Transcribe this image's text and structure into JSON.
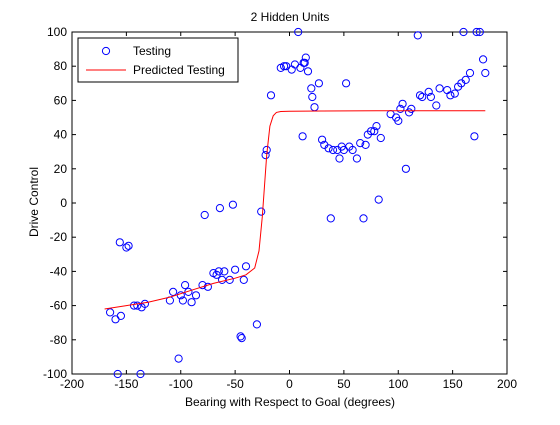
{
  "chart_data": {
    "type": "scatter",
    "title": "2 Hidden Units",
    "xlabel": "Bearing with Respect to Goal (degrees)",
    "ylabel": "Drive Control",
    "xlim": [
      -200,
      200
    ],
    "ylim": [
      -100,
      100
    ],
    "xticks": [
      -200,
      -150,
      -100,
      -50,
      0,
      50,
      100,
      150,
      200
    ],
    "yticks": [
      -100,
      -80,
      -60,
      -40,
      -20,
      0,
      20,
      40,
      60,
      80,
      100
    ],
    "grid": false,
    "legend_position": "top-left",
    "series": [
      {
        "name": "Testing",
        "type": "scatter",
        "marker": "open-circle",
        "color": "#0000ff",
        "points": [
          [
            -165,
            -64
          ],
          [
            -160,
            -68
          ],
          [
            -158,
            -100
          ],
          [
            -156,
            -23
          ],
          [
            -155,
            -66
          ],
          [
            -150,
            -26
          ],
          [
            -148,
            -25
          ],
          [
            -143,
            -60
          ],
          [
            -140,
            -60
          ],
          [
            -137,
            -100
          ],
          [
            -136,
            -61
          ],
          [
            -133,
            -59
          ],
          [
            -110,
            -57
          ],
          [
            -107,
            -52
          ],
          [
            -102,
            -91
          ],
          [
            -100,
            -54
          ],
          [
            -98,
            -57
          ],
          [
            -96,
            -48
          ],
          [
            -93,
            -52
          ],
          [
            -90,
            -58
          ],
          [
            -86,
            -54
          ],
          [
            -80,
            -48
          ],
          [
            -78,
            -7
          ],
          [
            -75,
            -49
          ],
          [
            -70,
            -41
          ],
          [
            -67,
            -42
          ],
          [
            -65,
            -40
          ],
          [
            -64,
            -3
          ],
          [
            -62,
            -45
          ],
          [
            -60,
            -40
          ],
          [
            -55,
            -45
          ],
          [
            -52,
            -1
          ],
          [
            -50,
            -39
          ],
          [
            -45,
            -78
          ],
          [
            -44,
            -79
          ],
          [
            -42,
            -45
          ],
          [
            -40,
            -37
          ],
          [
            -30,
            -71
          ],
          [
            -26,
            -5
          ],
          [
            -22,
            28
          ],
          [
            -21,
            31
          ],
          [
            -17,
            63
          ],
          [
            -8,
            79
          ],
          [
            -5,
            80
          ],
          [
            -3,
            80
          ],
          [
            2,
            78
          ],
          [
            5,
            81
          ],
          [
            8,
            100
          ],
          [
            10,
            79
          ],
          [
            12,
            39
          ],
          [
            13,
            82
          ],
          [
            14,
            82
          ],
          [
            15,
            85
          ],
          [
            17,
            77
          ],
          [
            20,
            67
          ],
          [
            21,
            62
          ],
          [
            23,
            56
          ],
          [
            27,
            70
          ],
          [
            30,
            37
          ],
          [
            32,
            34
          ],
          [
            36,
            32
          ],
          [
            38,
            -9
          ],
          [
            40,
            31
          ],
          [
            44,
            31
          ],
          [
            46,
            26
          ],
          [
            48,
            33
          ],
          [
            50,
            31
          ],
          [
            52,
            70
          ],
          [
            55,
            33
          ],
          [
            58,
            31
          ],
          [
            62,
            26
          ],
          [
            65,
            35
          ],
          [
            68,
            -9
          ],
          [
            70,
            34
          ],
          [
            72,
            40
          ],
          [
            75,
            42
          ],
          [
            78,
            42
          ],
          [
            80,
            45
          ],
          [
            82,
            2
          ],
          [
            84,
            38
          ],
          [
            93,
            52
          ],
          [
            98,
            50
          ],
          [
            100,
            48
          ],
          [
            102,
            55
          ],
          [
            104,
            58
          ],
          [
            107,
            20
          ],
          [
            110,
            53
          ],
          [
            112,
            55
          ],
          [
            118,
            98
          ],
          [
            120,
            63
          ],
          [
            122,
            62
          ],
          [
            128,
            65
          ],
          [
            130,
            62
          ],
          [
            135,
            57
          ],
          [
            138,
            67
          ],
          [
            145,
            66
          ],
          [
            148,
            63
          ],
          [
            152,
            64
          ],
          [
            155,
            68
          ],
          [
            158,
            70
          ],
          [
            160,
            100
          ],
          [
            162,
            72
          ],
          [
            166,
            76
          ],
          [
            170,
            39
          ],
          [
            172,
            100
          ],
          [
            175,
            100
          ],
          [
            178,
            84
          ],
          [
            180,
            76
          ]
        ]
      },
      {
        "name": "Predicted Testing",
        "type": "line",
        "color": "#ff0000",
        "points": [
          [
            -170,
            -62
          ],
          [
            -150,
            -60
          ],
          [
            -130,
            -58
          ],
          [
            -110,
            -55
          ],
          [
            -90,
            -51
          ],
          [
            -70,
            -47
          ],
          [
            -50,
            -44
          ],
          [
            -40,
            -42
          ],
          [
            -32,
            -38
          ],
          [
            -28,
            -28
          ],
          [
            -25,
            -8
          ],
          [
            -23,
            10
          ],
          [
            -21,
            28
          ],
          [
            -18,
            45
          ],
          [
            -15,
            51
          ],
          [
            -12,
            53
          ],
          [
            -8,
            53.5
          ],
          [
            0,
            53.7
          ],
          [
            30,
            53.8
          ],
          [
            80,
            54
          ],
          [
            120,
            54
          ],
          [
            180,
            54
          ]
        ]
      }
    ]
  }
}
